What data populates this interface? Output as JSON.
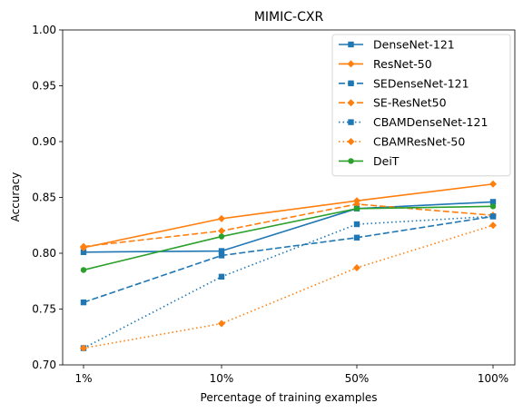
{
  "chart_data": {
    "type": "line",
    "title": "MIMIC-CXR",
    "xlabel": "Percentage of training examples",
    "ylabel": "Accuracy",
    "categories": [
      "1%",
      "10%",
      "50%",
      "100%"
    ],
    "ylim": [
      0.7,
      1.0
    ],
    "yticks": [
      "0.70",
      "0.75",
      "0.80",
      "0.85",
      "0.90",
      "0.95",
      "1.00"
    ],
    "grid": false,
    "legend_position": "top-right",
    "series": [
      {
        "name": "DenseNet-121",
        "values": [
          0.801,
          0.802,
          0.84,
          0.846
        ],
        "color": "#1f77b4",
        "dash": "solid",
        "marker": "square"
      },
      {
        "name": "ResNet-50",
        "values": [
          0.805,
          0.831,
          0.847,
          0.862
        ],
        "color": "#ff7f0e",
        "dash": "solid",
        "marker": "diamond"
      },
      {
        "name": "SEDenseNet-121",
        "values": [
          0.756,
          0.798,
          0.814,
          0.833
        ],
        "color": "#1f77b4",
        "dash": "dashed",
        "marker": "square"
      },
      {
        "name": "SE-ResNet50",
        "values": [
          0.806,
          0.82,
          0.844,
          0.834
        ],
        "color": "#ff7f0e",
        "dash": "dashed",
        "marker": "diamond"
      },
      {
        "name": "CBAMDenseNet-121",
        "values": [
          0.715,
          0.779,
          0.826,
          0.833
        ],
        "color": "#1f77b4",
        "dash": "dotted",
        "marker": "square"
      },
      {
        "name": "CBAMResNet-50",
        "values": [
          0.715,
          0.737,
          0.787,
          0.825
        ],
        "color": "#ff7f0e",
        "dash": "dotted",
        "marker": "diamond"
      },
      {
        "name": "DeiT",
        "values": [
          0.785,
          0.815,
          0.84,
          0.842
        ],
        "color": "#2ca02c",
        "dash": "solid",
        "marker": "circle"
      }
    ]
  }
}
